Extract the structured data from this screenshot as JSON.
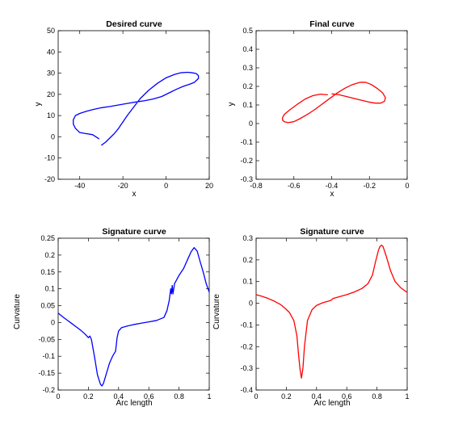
{
  "chart_data": [
    {
      "type": "line",
      "title": "Desired curve",
      "xlabel": "x",
      "ylabel": "y",
      "xlim": [
        -50,
        20
      ],
      "ylim": [
        -20,
        50
      ],
      "xticks": [
        -40,
        -20,
        0,
        20
      ],
      "yticks": [
        -20,
        -10,
        0,
        10,
        20,
        30,
        40,
        50
      ],
      "grid": false,
      "color": "#0000ff",
      "series": [
        {
          "x": [
            -31,
            -34,
            -37,
            -40,
            -42,
            -43,
            -43,
            -42,
            -40,
            -37,
            -34,
            -30,
            -26,
            -22,
            -18,
            -14,
            -10,
            -6,
            -2,
            2,
            5,
            8,
            11,
            13,
            14,
            15,
            15,
            14,
            12,
            10,
            7,
            4,
            0,
            -4,
            -8,
            -12,
            -15,
            -18,
            -20,
            -22,
            -24,
            -26,
            -28,
            -30
          ],
          "y": [
            -1,
            1,
            1.5,
            2,
            4,
            6,
            8,
            10,
            11,
            12,
            12.8,
            13.7,
            14.3,
            15.0,
            15.7,
            16.4,
            17.0,
            17.8,
            19.0,
            21.0,
            22.5,
            23.8,
            24.8,
            25.6,
            26.5,
            27.5,
            28.8,
            29.8,
            30.2,
            30.4,
            30.2,
            29.4,
            27.8,
            25.2,
            22.0,
            18.0,
            14.0,
            10.0,
            7.0,
            4.0,
            1.5,
            -0.5,
            -2.5,
            -4.0
          ]
        }
      ]
    },
    {
      "type": "line",
      "title": "Final curve",
      "xlabel": "x",
      "ylabel": "y",
      "xlim": [
        -0.8,
        0
      ],
      "ylim": [
        -0.3,
        0.5
      ],
      "xticks": [
        -0.8,
        -0.6,
        -0.4,
        -0.2,
        0
      ],
      "yticks": [
        -0.3,
        -0.2,
        -0.1,
        0,
        0.1,
        0.2,
        0.3,
        0.4,
        0.5
      ],
      "grid": false,
      "color": "#ff0000",
      "series": [
        {
          "x": [
            -0.42,
            -0.46,
            -0.5,
            -0.54,
            -0.58,
            -0.62,
            -0.65,
            -0.66,
            -0.66,
            -0.65,
            -0.63,
            -0.6,
            -0.57,
            -0.53,
            -0.49,
            -0.45,
            -0.41,
            -0.37,
            -0.33,
            -0.29,
            -0.25,
            -0.22,
            -0.19,
            -0.16,
            -0.13,
            -0.115,
            -0.12,
            -0.14,
            -0.17,
            -0.2,
            -0.24,
            -0.28,
            -0.32,
            -0.36,
            -0.4
          ],
          "y": [
            0.155,
            0.158,
            0.15,
            0.132,
            0.105,
            0.075,
            0.05,
            0.032,
            0.018,
            0.01,
            0.005,
            0.01,
            0.025,
            0.048,
            0.075,
            0.105,
            0.135,
            0.165,
            0.19,
            0.21,
            0.222,
            0.222,
            0.21,
            0.19,
            0.165,
            0.14,
            0.12,
            0.11,
            0.11,
            0.115,
            0.125,
            0.135,
            0.145,
            0.155,
            0.16
          ]
        }
      ]
    },
    {
      "type": "line",
      "title": "Signature curve",
      "xlabel": "Arc length",
      "ylabel": "Curvature",
      "xlim": [
        0,
        1
      ],
      "ylim": [
        -0.2,
        0.25
      ],
      "xticks": [
        0,
        0.2,
        0.4,
        0.6,
        0.8,
        1
      ],
      "yticks": [
        -0.2,
        -0.15,
        -0.1,
        -0.05,
        0,
        0.05,
        0.1,
        0.15,
        0.2,
        0.25
      ],
      "grid": false,
      "color": "#0000ff",
      "series": [
        {
          "x": [
            0,
            0.03,
            0.06,
            0.09,
            0.12,
            0.15,
            0.18,
            0.2,
            0.21,
            0.22,
            0.24,
            0.26,
            0.28,
            0.29,
            0.3,
            0.32,
            0.34,
            0.36,
            0.38,
            0.39,
            0.4,
            0.42,
            0.46,
            0.5,
            0.55,
            0.6,
            0.65,
            0.7,
            0.72,
            0.735,
            0.745,
            0.75,
            0.755,
            0.76,
            0.765,
            0.77,
            0.8,
            0.83,
            0.86,
            0.88,
            0.9,
            0.92,
            0.94,
            0.96,
            0.98,
            1.0
          ],
          "y": [
            0.028,
            0.017,
            0.007,
            -0.003,
            -0.013,
            -0.023,
            -0.035,
            -0.045,
            -0.04,
            -0.05,
            -0.1,
            -0.155,
            -0.183,
            -0.188,
            -0.18,
            -0.15,
            -0.12,
            -0.1,
            -0.085,
            -0.045,
            -0.025,
            -0.015,
            -0.01,
            -0.006,
            -0.002,
            0.002,
            0.006,
            0.015,
            0.035,
            0.065,
            0.1,
            0.085,
            0.11,
            0.085,
            0.1,
            0.115,
            0.14,
            0.16,
            0.19,
            0.21,
            0.222,
            0.212,
            0.18,
            0.15,
            0.115,
            0.09
          ]
        }
      ]
    },
    {
      "type": "line",
      "title": "Signature curve",
      "xlabel": "Arc length",
      "ylabel": "Curvature",
      "xlim": [
        0,
        1
      ],
      "ylim": [
        -0.4,
        0.3
      ],
      "xticks": [
        0,
        0.2,
        0.4,
        0.6,
        0.8,
        1
      ],
      "yticks": [
        -0.4,
        -0.3,
        -0.2,
        -0.1,
        0,
        0.1,
        0.2,
        0.3
      ],
      "grid": false,
      "color": "#ff0000",
      "series": [
        {
          "x": [
            0,
            0.04,
            0.08,
            0.12,
            0.16,
            0.19,
            0.22,
            0.25,
            0.27,
            0.28,
            0.29,
            0.3,
            0.31,
            0.32,
            0.34,
            0.37,
            0.4,
            0.44,
            0.48,
            0.5,
            0.505,
            0.51,
            0.55,
            0.6,
            0.65,
            0.7,
            0.74,
            0.77,
            0.79,
            0.81,
            0.82,
            0.83,
            0.84,
            0.86,
            0.89,
            0.92,
            0.96,
            1.0
          ],
          "y": [
            0.04,
            0.032,
            0.022,
            0.01,
            -0.005,
            -0.022,
            -0.042,
            -0.08,
            -0.15,
            -0.23,
            -0.3,
            -0.345,
            -0.3,
            -0.2,
            -0.08,
            -0.03,
            -0.01,
            0.002,
            0.01,
            0.015,
            0.02,
            0.022,
            0.03,
            0.04,
            0.052,
            0.068,
            0.09,
            0.13,
            0.19,
            0.245,
            0.262,
            0.268,
            0.262,
            0.22,
            0.15,
            0.1,
            0.07,
            0.05
          ]
        }
      ]
    }
  ]
}
